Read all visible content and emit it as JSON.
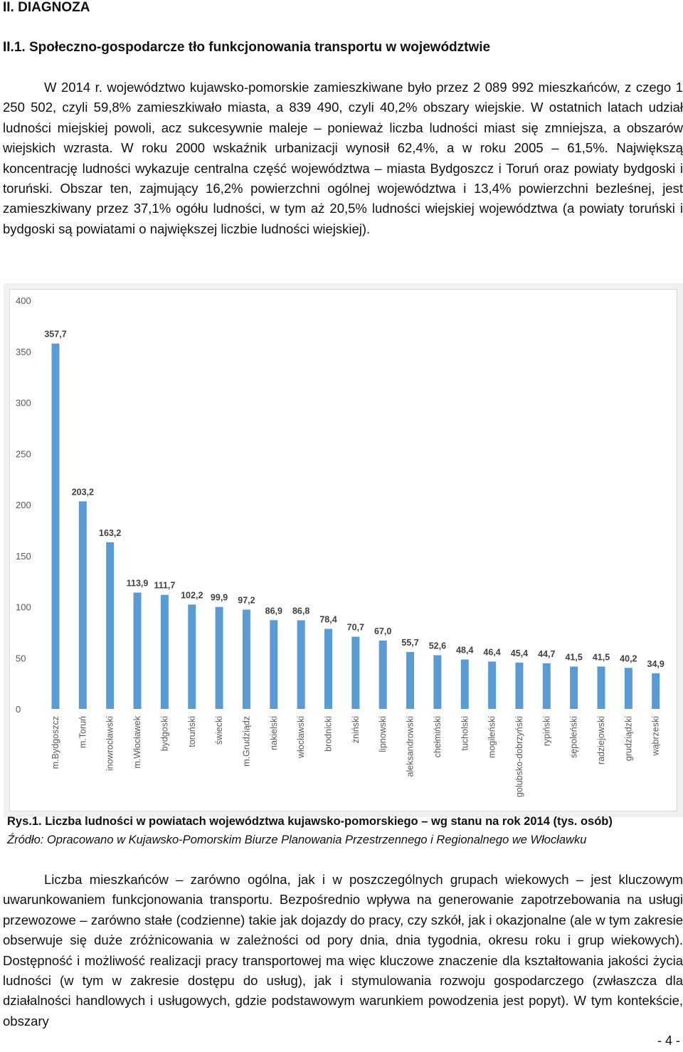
{
  "heading1": "II. DIAGNOZA",
  "heading2": "II.1. Społeczno-gospodarcze tło funkcjonowania transportu w województwie",
  "para1": "W 2014 r. województwo kujawsko-pomorskie zamieszkiwane było przez 2 089 992 mieszkańców, z czego 1 250 502, czyli 59,8% zamieszkiwało miasta, a 839 490, czyli 40,2% obszary wiejskie. W ostatnich latach udział ludności miejskiej powoli, acz sukcesywnie maleje – ponieważ liczba ludności miast się zmniejsza, a obszarów wiejskich wzrasta. W roku 2000 wskaźnik urbanizacji wynosił 62,4%, a w roku 2005 – 61,5%. Największą koncentrację ludności wykazuje centralna część województwa – miasta Bydgoszcz i Toruń oraz powiaty bydgoski i toruński. Obszar ten, zajmujący 16,2% powierzchni ogólnej województwa i 13,4% powierzchni bezleśnej, jest zamieszkiwany przez 37,1% ogółu ludności, w tym aż 20,5% ludności wiejskiej województwa (a powiaty toruński i bydgoski są powiatami o największej liczbie ludności wiejskiej).",
  "chart_data": {
    "type": "bar",
    "categories": [
      "m.Bydgoszcz",
      "m.Toruń",
      "inowrocławski",
      "m.Włocławek",
      "bydgoski",
      "toruński",
      "świecki",
      "m.Grudziądz",
      "nakielski",
      "włocławski",
      "brodnicki",
      "żniński",
      "lipnowski",
      "aleksandrowski",
      "chełmiński",
      "tucholski",
      "mogileński",
      "golubsko-dobrzyński",
      "rypiński",
      "sępoleński",
      "radziejowski",
      "grudziądzki",
      "wąbrzeski"
    ],
    "values": [
      357.7,
      203.2,
      163.2,
      113.9,
      111.7,
      102.2,
      99.9,
      97.2,
      86.9,
      86.8,
      78.4,
      70.7,
      67.0,
      55.7,
      52.6,
      48.4,
      46.4,
      45.4,
      44.7,
      41.5,
      41.5,
      40.2,
      34.9
    ],
    "value_labels": [
      "357,7",
      "203,2",
      "163,2",
      "113,9",
      "111,7",
      "102,2",
      "99,9",
      "97,2",
      "86,9",
      "86,8",
      "78,4",
      "70,7",
      "67,0",
      "55,7",
      "52,6",
      "48,4",
      "46,4",
      "45,4",
      "44,7",
      "41,5",
      "41,5",
      "40,2",
      "34,9"
    ],
    "yticks": [
      "0",
      "50",
      "100",
      "150",
      "200",
      "250",
      "300",
      "350",
      "400"
    ],
    "ylim": [
      0,
      400
    ],
    "bar_color": "#5b9bd5",
    "grid": false,
    "legend": false
  },
  "caption": {
    "figure_no": "Rys.1.",
    "title": "Liczba ludności w powiatach województwa kujawsko-pomorskiego – wg stanu na rok 2014 (tys. osób)",
    "source": "Źródło: Opracowano w Kujawsko-Pomorskim Biurze Planowania Przestrzennego i Regionalnego we Włocławku"
  },
  "para2": "Liczba mieszkańców – zarówno ogólna, jak i w poszczególnych grupach wiekowych – jest kluczowym uwarunkowaniem funkcjonowania transportu. Bezpośrednio wpływa na generowanie zapotrzebowania na usługi przewozowe – zarówno stałe (codzienne) takie jak dojazdy do pracy, czy szkół, jak i okazjonalne (ale w tym zakresie obserwuje się duże zróżnicowania w zależności od pory dnia, dnia tygodnia, okresu roku i grup wiekowych). Dostępność i możliwość realizacji pracy transportowej ma więc kluczowe znaczenie dla kształtowania jakości życia ludności (w tym w zakresie dostępu do usług), jak i stymulowania rozwoju gospodarczego (zwłaszcza dla działalności handlowych i usługowych, gdzie podstawowym warunkiem powodzenia jest popyt). W tym kontekście, obszary",
  "page_number": "- 4 -"
}
